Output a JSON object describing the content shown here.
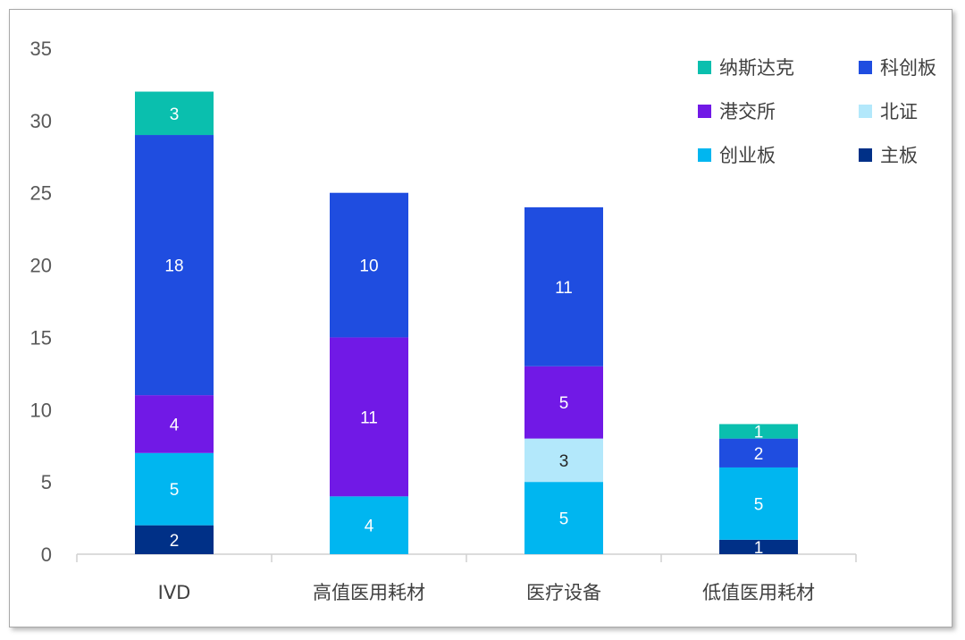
{
  "chart_data": {
    "type": "bar",
    "stacked": true,
    "title": "",
    "xlabel": "",
    "ylabel": "",
    "ylim": [
      0,
      35
    ],
    "yticks": [
      0,
      5,
      10,
      15,
      20,
      25,
      30,
      35
    ],
    "grid": false,
    "legend_position": "top-right",
    "categories": [
      "IVD",
      "高值医用耗材",
      "医疗设备",
      "低值医用耗材"
    ],
    "series": [
      {
        "name": "主板",
        "color": "#003087",
        "label_color": "#ffffff",
        "values": [
          2,
          0,
          0,
          1
        ]
      },
      {
        "name": "创业板",
        "color": "#00b6f0",
        "label_color": "#ffffff",
        "values": [
          5,
          4,
          5,
          5
        ]
      },
      {
        "name": "北证",
        "color": "#b3e8fb",
        "label_color": "#262626",
        "values": [
          0,
          0,
          3,
          0
        ]
      },
      {
        "name": "港交所",
        "color": "#7119e6",
        "label_color": "#ffffff",
        "values": [
          4,
          11,
          5,
          0
        ]
      },
      {
        "name": "科创板",
        "color": "#1f4de0",
        "label_color": "#ffffff",
        "values": [
          18,
          10,
          11,
          2
        ]
      },
      {
        "name": "纳斯达克",
        "color": "#0abfae",
        "label_color": "#ffffff",
        "values": [
          3,
          0,
          0,
          1
        ]
      }
    ],
    "legend_order": [
      "纳斯达克",
      "科创板",
      "港交所",
      "北证",
      "创业板",
      "主板"
    ]
  }
}
